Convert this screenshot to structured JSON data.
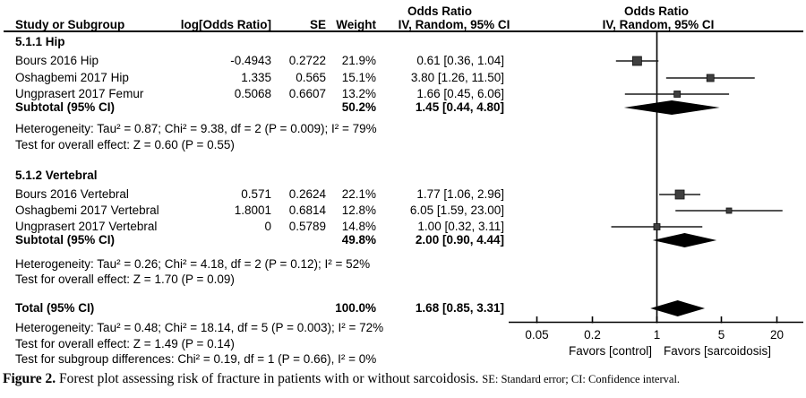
{
  "header": {
    "or_label": "Odds Ratio",
    "method_label": "IV, Random, 95% CI",
    "study_col": "Study or Subgroup",
    "log_or_col": "log[Odds Ratio]",
    "se_col": "SE",
    "weight_col": "Weight"
  },
  "rows": [
    {
      "type": "group",
      "label": "5.1.1 Hip"
    },
    {
      "type": "study",
      "name": "Bours 2016 Hip",
      "log_or": "-0.4943",
      "se": "0.2722",
      "weight": "21.9%",
      "or_ci": "0.61 [0.36, 1.04]",
      "est": 0.61,
      "lo": 0.36,
      "hi": 1.04,
      "w": 21.9
    },
    {
      "type": "study",
      "name": "Oshagbemi 2017 Hip",
      "log_or": "1.335",
      "se": "0.565",
      "weight": "15.1%",
      "or_ci": "3.80 [1.26, 11.50]",
      "est": 3.8,
      "lo": 1.26,
      "hi": 11.5,
      "w": 15.1
    },
    {
      "type": "study",
      "name": "Ungprasert 2017 Femur",
      "log_or": "0.5068",
      "se": "0.6607",
      "weight": "13.2%",
      "or_ci": "1.66 [0.45, 6.06]",
      "est": 1.66,
      "lo": 0.45,
      "hi": 6.06,
      "w": 13.2
    },
    {
      "type": "pooled",
      "label": "Subtotal (95% CI)",
      "weight": "50.2%",
      "or_ci": "1.45 [0.44, 4.80]",
      "est": 1.45,
      "lo": 0.44,
      "hi": 4.8,
      "dh": 8
    },
    {
      "type": "stat",
      "text": "Heterogeneity: Tau² = 0.87; Chi² = 9.38, df = 2 (P = 0.009); I² = 79%"
    },
    {
      "type": "stat",
      "text": "Test for overall effect: Z = 0.60 (P = 0.55)"
    },
    {
      "type": "group",
      "label": "5.1.2 Vertebral"
    },
    {
      "type": "study",
      "name": "Bours 2016 Vertebral",
      "log_or": "0.571",
      "se": "0.2624",
      "weight": "22.1%",
      "or_ci": "1.77 [1.06, 2.96]",
      "est": 1.77,
      "lo": 1.06,
      "hi": 2.96,
      "w": 22.1
    },
    {
      "type": "study",
      "name": "Oshagbemi 2017 Vertebral",
      "log_or": "1.8001",
      "se": "0.6814",
      "weight": "12.8%",
      "or_ci": "6.05 [1.59, 23.00]",
      "est": 6.05,
      "lo": 1.59,
      "hi": 23.0,
      "w": 12.8
    },
    {
      "type": "study",
      "name": "Ungprasert 2017 Vertebral",
      "log_or": "0",
      "se": "0.5789",
      "weight": "14.8%",
      "or_ci": "1.00 [0.32, 3.11]",
      "est": 1.0,
      "lo": 0.32,
      "hi": 3.11,
      "w": 14.8
    },
    {
      "type": "pooled",
      "label": "Subtotal (95% CI)",
      "weight": "49.8%",
      "or_ci": "2.00 [0.90, 4.44]",
      "est": 2.0,
      "lo": 0.9,
      "hi": 4.44,
      "dh": 8
    },
    {
      "type": "stat",
      "text": "Heterogeneity: Tau² = 0.26; Chi² = 4.18, df = 2 (P = 0.12); I² = 52%"
    },
    {
      "type": "stat",
      "text": "Test for overall effect: Z = 1.70 (P = 0.09)"
    },
    {
      "type": "pooled",
      "label": "Total (95% CI)",
      "weight": "100.0%",
      "or_ci": "1.68 [0.85, 3.31]",
      "est": 1.68,
      "lo": 0.85,
      "hi": 3.31,
      "dh": 9
    },
    {
      "type": "stat",
      "text": "Heterogeneity: Tau² = 0.48; Chi² = 18.14, df = 5 (P = 0.003); I² = 72%"
    },
    {
      "type": "stat",
      "text": "Test for overall effect: Z = 1.49 (P = 0.14)"
    },
    {
      "type": "stat",
      "text": "Test for subgroup differences: Chi² = 0.19, df = 1 (P = 0.66), I² = 0%"
    }
  ],
  "axis": {
    "ticks": [
      {
        "value": 0.05,
        "label": "0.05"
      },
      {
        "value": 0.2,
        "label": "0.2"
      },
      {
        "value": 1,
        "label": "1"
      },
      {
        "value": 5,
        "label": "5"
      },
      {
        "value": 20,
        "label": "20"
      }
    ],
    "favors_left": "Favors [control]",
    "favors_right": "Favors [sarcoidosis]"
  },
  "caption": {
    "label": "Figure 2.",
    "text": " Forest plot assessing risk of fracture in patients with or without sarcoidosis. ",
    "abbrev": "SE: Standard error; CI: Confidence interval."
  },
  "colors": {
    "square": "#3f3f3f",
    "square_border": "#111111",
    "ci_line": "#1a1a1a",
    "diamond": "#000000",
    "axis": "#000000"
  },
  "chart_data": {
    "type": "forest",
    "effect_measure": "Odds Ratio",
    "method": "IV, Random, 95% CI",
    "x_scale": "log",
    "x_ticks": [
      0.05,
      0.2,
      1,
      5,
      20
    ],
    "x_axis_labels": [
      "Favors [control]",
      "Favors [sarcoidosis]"
    ],
    "groups": [
      {
        "name": "5.1.1 Hip",
        "studies": [
          {
            "study": "Bours 2016 Hip",
            "log_or": -0.4943,
            "se": 0.2722,
            "weight_pct": 21.9,
            "or": 0.61,
            "ci": [
              0.36,
              1.04
            ]
          },
          {
            "study": "Oshagbemi 2017 Hip",
            "log_or": 1.335,
            "se": 0.565,
            "weight_pct": 15.1,
            "or": 3.8,
            "ci": [
              1.26,
              11.5
            ]
          },
          {
            "study": "Ungprasert 2017 Femur",
            "log_or": 0.5068,
            "se": 0.6607,
            "weight_pct": 13.2,
            "or": 1.66,
            "ci": [
              0.45,
              6.06
            ]
          }
        ],
        "subtotal": {
          "weight_pct": 50.2,
          "or": 1.45,
          "ci": [
            0.44,
            4.8
          ]
        },
        "heterogeneity": {
          "tau2": 0.87,
          "chi2": 9.38,
          "df": 2,
          "p": 0.009,
          "i2_pct": 79
        },
        "overall_effect": {
          "z": 0.6,
          "p": 0.55
        }
      },
      {
        "name": "5.1.2 Vertebral",
        "studies": [
          {
            "study": "Bours 2016 Vertebral",
            "log_or": 0.571,
            "se": 0.2624,
            "weight_pct": 22.1,
            "or": 1.77,
            "ci": [
              1.06,
              2.96
            ]
          },
          {
            "study": "Oshagbemi 2017 Vertebral",
            "log_or": 1.8001,
            "se": 0.6814,
            "weight_pct": 12.8,
            "or": 6.05,
            "ci": [
              1.59,
              23.0
            ]
          },
          {
            "study": "Ungprasert 2017 Vertebral",
            "log_or": 0,
            "se": 0.5789,
            "weight_pct": 14.8,
            "or": 1.0,
            "ci": [
              0.32,
              3.11
            ]
          }
        ],
        "subtotal": {
          "weight_pct": 49.8,
          "or": 2.0,
          "ci": [
            0.9,
            4.44
          ]
        },
        "heterogeneity": {
          "tau2": 0.26,
          "chi2": 4.18,
          "df": 2,
          "p": 0.12,
          "i2_pct": 52
        },
        "overall_effect": {
          "z": 1.7,
          "p": 0.09
        }
      }
    ],
    "total": {
      "weight_pct": 100.0,
      "or": 1.68,
      "ci": [
        0.85,
        3.31
      ]
    },
    "total_heterogeneity": {
      "tau2": 0.48,
      "chi2": 18.14,
      "df": 5,
      "p": 0.003,
      "i2_pct": 72
    },
    "total_overall_effect": {
      "z": 1.49,
      "p": 0.14
    },
    "subgroup_differences": {
      "chi2": 0.19,
      "df": 1,
      "p": 0.66,
      "i2_pct": 0
    },
    "title": "Figure 2. Forest plot assessing risk of fracture in patients with or without sarcoidosis."
  }
}
